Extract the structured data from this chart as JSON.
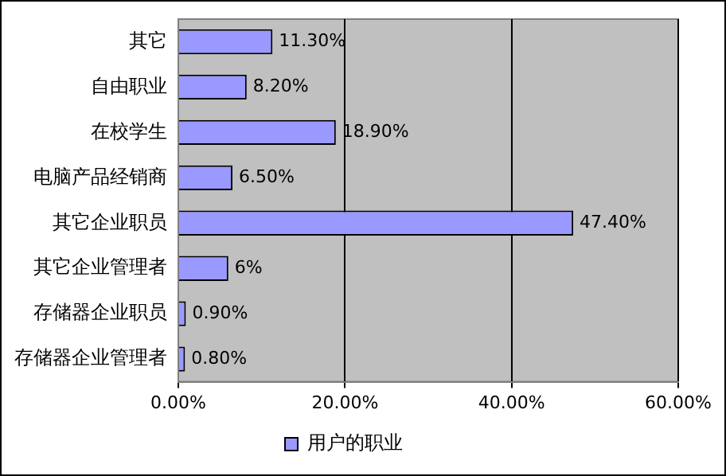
{
  "chart_data": {
    "type": "bar",
    "orientation": "horizontal",
    "categories": [
      "其它",
      "自由职业",
      "在校学生",
      "电脑产品经销商",
      "其它企业职员",
      "其它企业管理者",
      "存储器企业职员",
      "存储器企业管理者"
    ],
    "series": [
      {
        "name": "用户的职业",
        "color": "#9999ff",
        "values": [
          11.3,
          8.2,
          18.9,
          6.5,
          47.4,
          6,
          0.9,
          0.8
        ],
        "value_labels": [
          "11.30%",
          "8.20%",
          "18.90%",
          "6.50%",
          "47.40%",
          "6%",
          "0.90%",
          "0.80%"
        ]
      }
    ],
    "xlim": [
      0,
      60
    ],
    "xticks": [
      {
        "value": 0,
        "label": "0.00%"
      },
      {
        "value": 20,
        "label": "20.00%"
      },
      {
        "value": 40,
        "label": "40.00%"
      },
      {
        "value": 60,
        "label": "60.00%"
      }
    ],
    "grid": "x",
    "legend": "bottom"
  }
}
